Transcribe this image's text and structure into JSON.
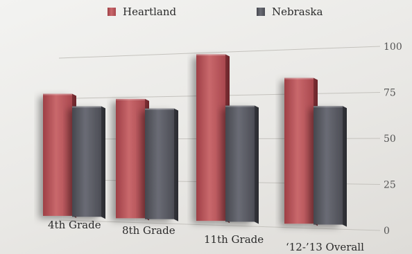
{
  "chart_data": {
    "type": "bar",
    "categories": [
      "4th Grade",
      "8th Grade",
      "11th Grade",
      "‘12-’13 Overall"
    ],
    "series": [
      {
        "name": "Heartland",
        "values": [
          78,
          74,
          99,
          84
        ],
        "color": "#b9555a"
      },
      {
        "name": "Nebraska",
        "values": [
          70,
          68,
          69,
          68
        ],
        "color": "#5b5d66"
      }
    ],
    "yticks": [
      "0",
      "25",
      "50",
      "75",
      "100"
    ],
    "ylim": [
      0,
      100
    ],
    "legend_position": "top",
    "grid": true
  }
}
